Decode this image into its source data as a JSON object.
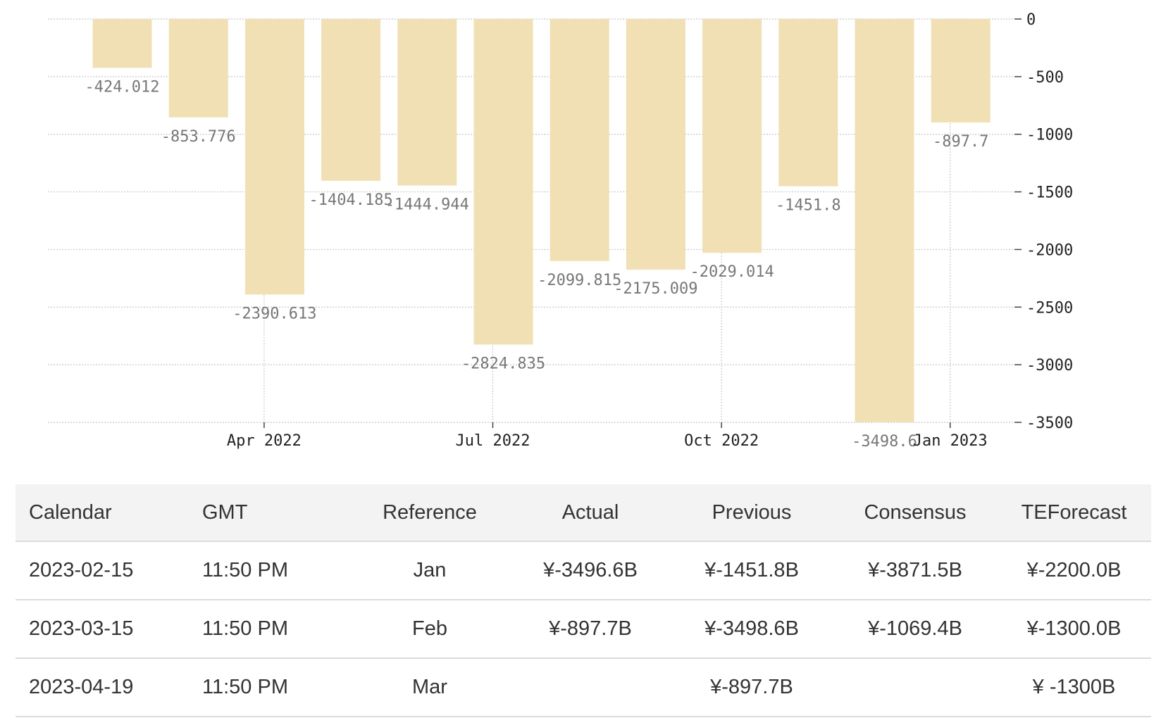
{
  "chart_data": {
    "type": "bar",
    "categories": [
      "Feb 2022",
      "Mar 2022",
      "Apr 2022",
      "May 2022",
      "Jun 2022",
      "Jul 2022",
      "Aug 2022",
      "Sep 2022",
      "Oct 2022",
      "Nov 2022",
      "Dec 2022",
      "Jan 2023"
    ],
    "values": [
      -424.012,
      -853.776,
      -2390.613,
      -1404.185,
      -1444.944,
      -2824.835,
      -2099.815,
      -2175.009,
      -2029.014,
      -1451.8,
      -3498.6,
      -897.7
    ],
    "value_labels": [
      "-424.012",
      "-853.776",
      "-2390.613",
      "-1404.185",
      "-1444.944",
      "-2824.835",
      "-2099.815",
      "-2175.009",
      "-2029.014",
      "-1451.8",
      "-3498.6",
      "-897.7"
    ],
    "x_tick_labels": [
      "Apr 2022",
      "Jul 2022",
      "Oct 2022",
      "Jan 2023"
    ],
    "y_ticks": [
      0,
      -500,
      -1000,
      -1500,
      -2000,
      -2500,
      -3000,
      -3500
    ],
    "ylim": [
      -3500,
      0
    ],
    "y_axis_position": "right",
    "grid": true,
    "bar_color": "#f0e0b4",
    "title": "",
    "xlabel": "",
    "ylabel": ""
  },
  "table": {
    "headers": [
      "Calendar",
      "GMT",
      "Reference",
      "Actual",
      "Previous",
      "Consensus",
      "TEForecast"
    ],
    "rows": [
      [
        "2023-02-15",
        "11:50 PM",
        "Jan",
        "¥-3496.6B",
        "¥-1451.8B",
        "¥-3871.5B",
        "¥-2200.0B"
      ],
      [
        "2023-03-15",
        "11:50 PM",
        "Feb",
        "¥-897.7B",
        "¥-3498.6B",
        "¥-1069.4B",
        "¥-1300.0B"
      ],
      [
        "2023-04-19",
        "11:50 PM",
        "Mar",
        "",
        "¥-897.7B",
        "",
        "¥ -1300B"
      ]
    ]
  }
}
